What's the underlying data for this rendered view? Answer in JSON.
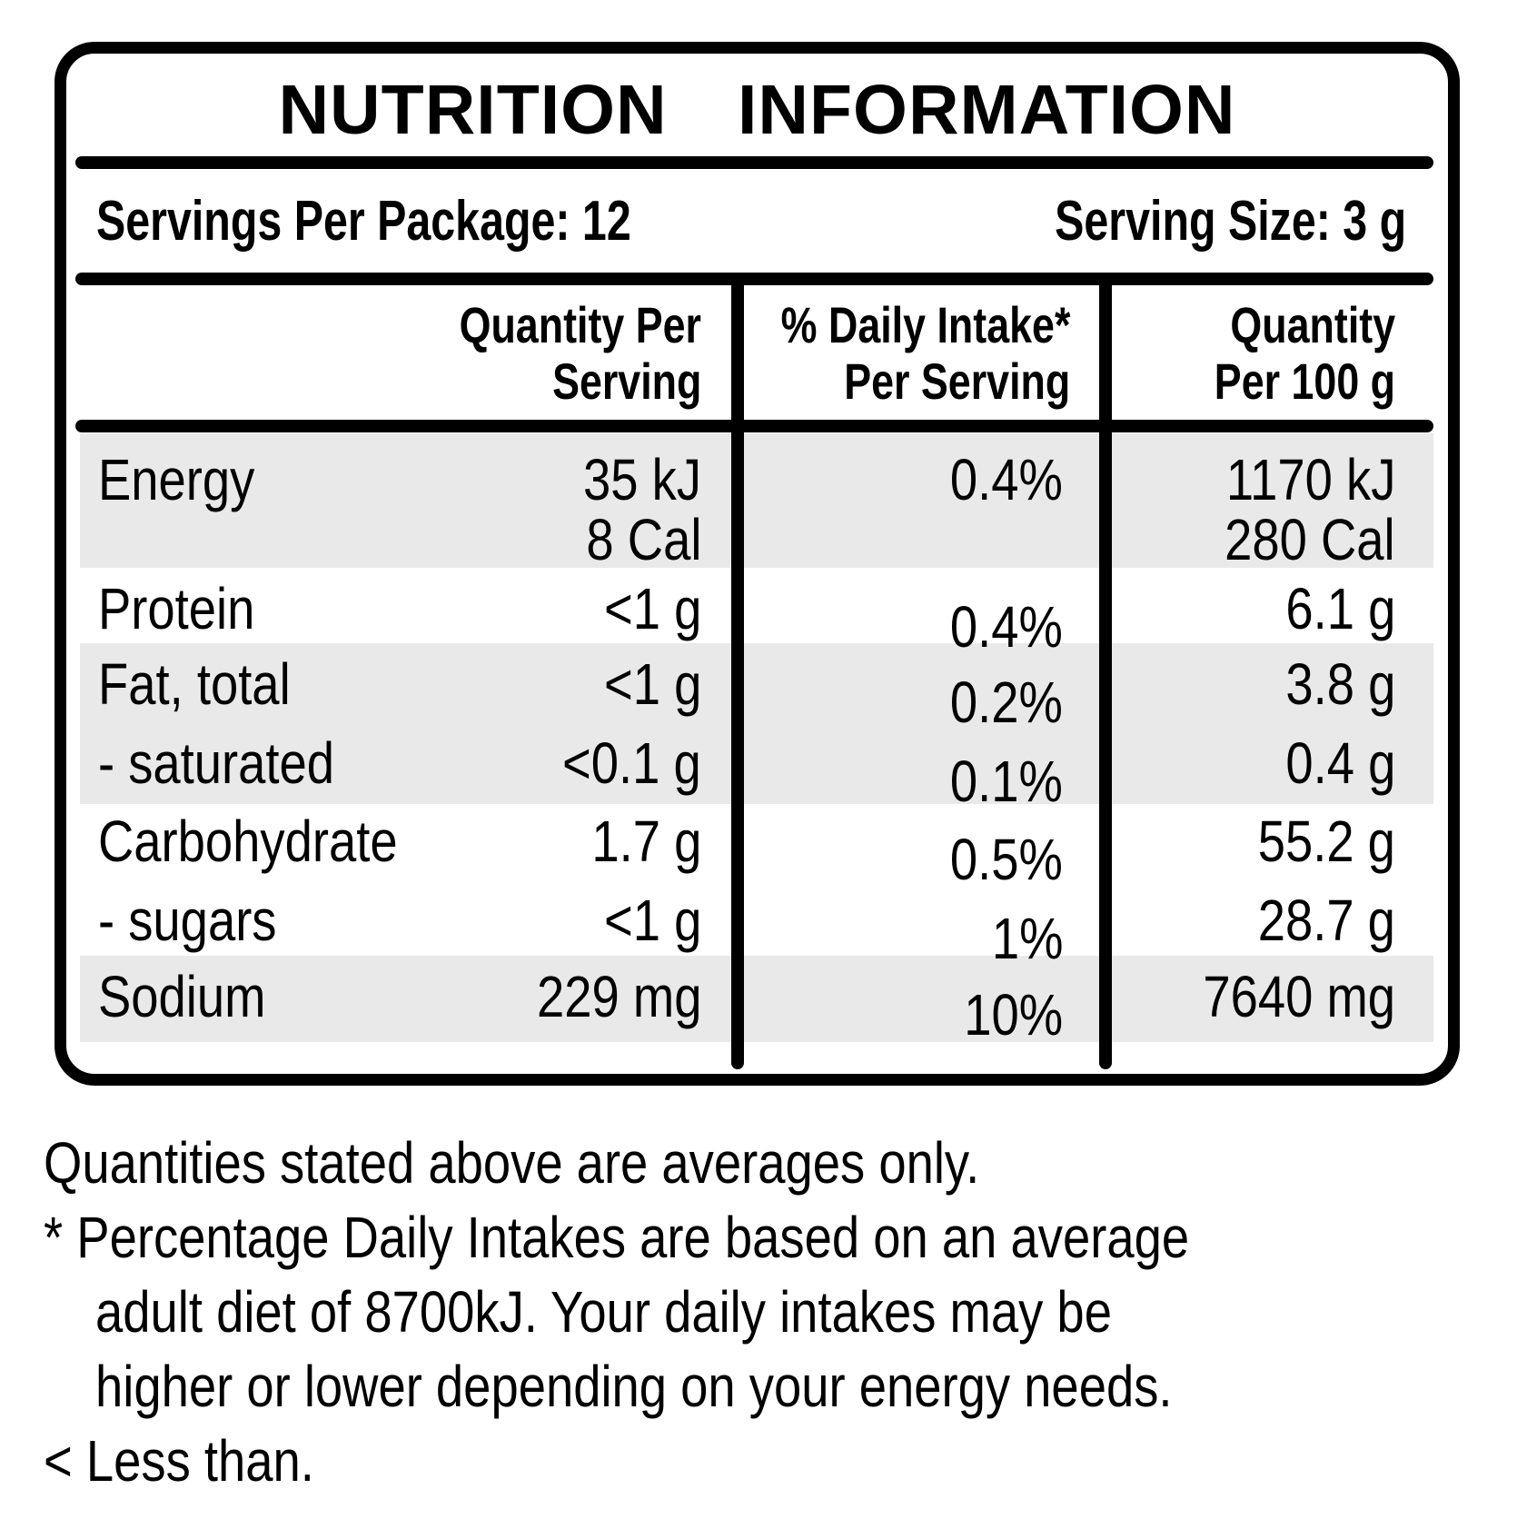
{
  "colors": {
    "shade": "#e9e9ea",
    "ink": "#000000"
  },
  "label": {
    "title": "NUTRITION INFORMATION",
    "servings_line": {
      "left": "Servings Per Package: 12",
      "right": "Serving Size: 3 g"
    },
    "columns": {
      "quantity_per_serving": [
        "Quantity Per",
        "Serving"
      ],
      "daily_intake": [
        "% Daily Intake*",
        "Per Serving"
      ],
      "quantity_per_100g": [
        "Quantity",
        "Per 100 g"
      ]
    },
    "rows": [
      {
        "nutrient": "Energy",
        "per_serving": "35 kJ",
        "per_serving_alt": "8 Cal",
        "daily_intake": "0.4%",
        "per_100g": "1170 kJ",
        "per_100g_alt": "280 Cal"
      },
      {
        "nutrient": "Protein",
        "per_serving": "<1 g",
        "daily_intake": "0.4%",
        "per_100g": "6.1 g"
      },
      {
        "nutrient": "Fat, total",
        "per_serving": "<1 g",
        "daily_intake": "0.2%",
        "per_100g": "3.8 g"
      },
      {
        "nutrient": "- saturated",
        "per_serving": "<0.1 g",
        "daily_intake": "0.1%",
        "per_100g": "0.4 g"
      },
      {
        "nutrient": "Carbohydrate",
        "per_serving": "1.7 g",
        "daily_intake": "0.5%",
        "per_100g": "55.2 g"
      },
      {
        "nutrient": "- sugars",
        "per_serving": "<1 g",
        "daily_intake": "1%",
        "per_100g": "28.7 g"
      },
      {
        "nutrient": "Sodium",
        "per_serving": "229 mg",
        "daily_intake": "10%",
        "per_100g": "7640 mg"
      }
    ]
  },
  "footnotes": {
    "lines": [
      "Quantities stated above are averages only.",
      "* Percentage Daily Intakes are based on an average",
      "adult diet of 8700kJ. Your daily intakes may be",
      "higher or lower depending on your energy needs.",
      "< Less than."
    ]
  }
}
